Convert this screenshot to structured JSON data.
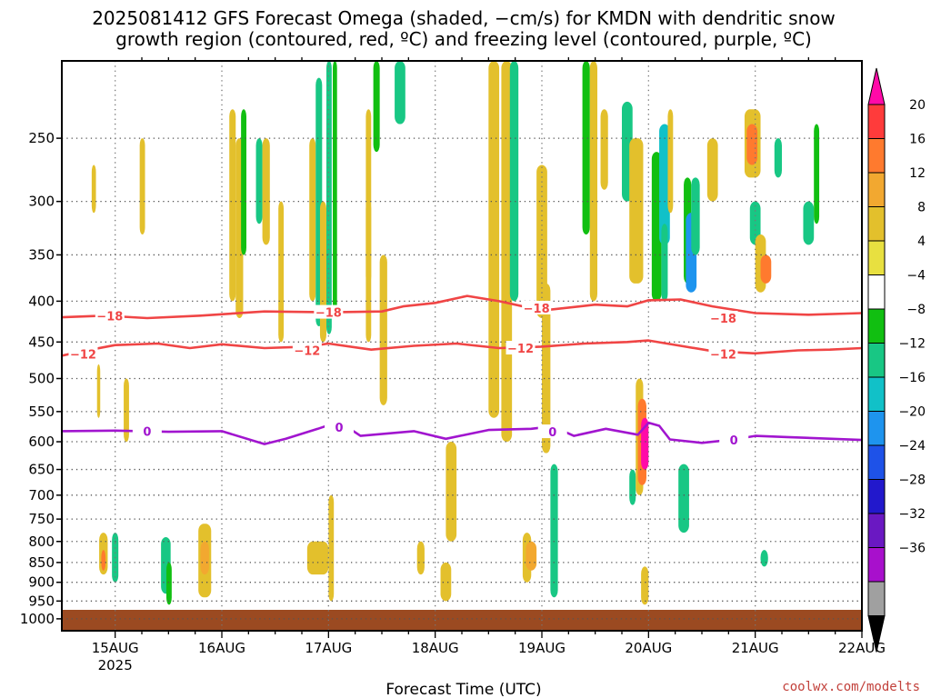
{
  "chart_data": {
    "type": "heatmap",
    "title_line1": "2025081412 GFS Forecast Omega (shaded, −cm/s) for KMDN with dendritic snow",
    "title_line2": "growth region (contoured, red, ºC) and freezing level (contoured, purple, ºC)",
    "xlabel": "Forecast Time (UTC)",
    "credit": "coolwx.com/modelts",
    "x_range_days": [
      "14AUG 12Z",
      "22AUG 00Z"
    ],
    "x_ticks": [
      {
        "label": "15AUG",
        "sub": "2025",
        "day": 15
      },
      {
        "label": "16AUG",
        "sub": "",
        "day": 16
      },
      {
        "label": "17AUG",
        "sub": "",
        "day": 17
      },
      {
        "label": "18AUG",
        "sub": "",
        "day": 18
      },
      {
        "label": "19AUG",
        "sub": "",
        "day": 19
      },
      {
        "label": "20AUG",
        "sub": "",
        "day": 20
      },
      {
        "label": "21AUG",
        "sub": "",
        "day": 21
      },
      {
        "label": "22AUG",
        "sub": "",
        "day": 22
      }
    ],
    "y_axis": {
      "units": "hPa",
      "range": [
        200,
        1035
      ],
      "scale": "log",
      "ticks": [
        "250",
        "300",
        "350",
        "400",
        "450",
        "500",
        "550",
        "600",
        "650",
        "700",
        "750",
        "800",
        "850",
        "900",
        "950",
        "1000"
      ]
    },
    "colorbar": {
      "labels": [
        "20",
        "16",
        "12",
        "8",
        "4",
        "−4",
        "−8",
        "−12",
        "−16",
        "−20",
        "−24",
        "−28",
        "−32",
        "−36"
      ],
      "colors": [
        "#ff0aa8",
        "#ff3b3b",
        "#ff7a2e",
        "#f2a830",
        "#e3c02c",
        "#e8e040",
        "#ffffff",
        "#11bf11",
        "#18c784",
        "#11c1c8",
        "#1e94ee",
        "#1e52e8",
        "#2218cc",
        "#6a18c2",
        "#a810cc",
        "#a0a0a0",
        "#000000"
      ]
    },
    "contours": [
      {
        "label": "−18",
        "color": "#f04545",
        "kind": "dendritic-snow",
        "points": [
          [
            14.5,
            419
          ],
          [
            14.9,
            417
          ],
          [
            15.3,
            420
          ],
          [
            15.8,
            417
          ],
          [
            16.4,
            412
          ],
          [
            17.0,
            413
          ],
          [
            17.5,
            412
          ],
          [
            17.7,
            406
          ],
          [
            18.0,
            402
          ],
          [
            18.3,
            394
          ],
          [
            18.6,
            400
          ],
          [
            19.0,
            411
          ],
          [
            19.5,
            404
          ],
          [
            19.8,
            406
          ],
          [
            20.0,
            399
          ],
          [
            20.3,
            398
          ],
          [
            20.6,
            406
          ],
          [
            21.0,
            414
          ],
          [
            21.5,
            416
          ],
          [
            22.0,
            414
          ]
        ],
        "label_at": [
          [
            14.95,
            417
          ],
          [
            17.0,
            413
          ],
          [
            18.95,
            408
          ],
          [
            20.7,
            420
          ]
        ]
      },
      {
        "label": "−12",
        "color": "#f04545",
        "kind": "dendritic-snow",
        "points": [
          [
            14.5,
            468
          ],
          [
            14.7,
            462
          ],
          [
            15.0,
            454
          ],
          [
            15.4,
            452
          ],
          [
            15.7,
            458
          ],
          [
            16.0,
            453
          ],
          [
            16.4,
            458
          ],
          [
            16.8,
            456
          ],
          [
            17.0,
            452
          ],
          [
            17.4,
            460
          ],
          [
            17.8,
            455
          ],
          [
            18.2,
            452
          ],
          [
            18.6,
            458
          ],
          [
            19.0,
            456
          ],
          [
            19.4,
            452
          ],
          [
            19.8,
            450
          ],
          [
            20.0,
            448
          ],
          [
            20.3,
            455
          ],
          [
            20.6,
            462
          ],
          [
            21.0,
            465
          ],
          [
            21.4,
            461
          ],
          [
            21.7,
            460
          ],
          [
            22.0,
            458
          ]
        ],
        "label_at": [
          [
            14.7,
            466
          ],
          [
            16.8,
            461
          ],
          [
            18.8,
            458
          ],
          [
            20.7,
            466
          ]
        ]
      },
      {
        "label": "0",
        "color": "#a115cf",
        "kind": "freezing-level",
        "points": [
          [
            14.5,
            582
          ],
          [
            15.0,
            581
          ],
          [
            15.5,
            583
          ],
          [
            16.0,
            582
          ],
          [
            16.4,
            604
          ],
          [
            16.6,
            595
          ],
          [
            16.9,
            578
          ],
          [
            17.1,
            566
          ],
          [
            17.3,
            590
          ],
          [
            17.8,
            582
          ],
          [
            18.1,
            595
          ],
          [
            18.5,
            580
          ],
          [
            18.9,
            578
          ],
          [
            19.1,
            574
          ],
          [
            19.3,
            590
          ],
          [
            19.6,
            578
          ],
          [
            19.9,
            588
          ],
          [
            20.0,
            568
          ],
          [
            20.1,
            573
          ],
          [
            20.2,
            596
          ],
          [
            20.5,
            602
          ],
          [
            20.8,
            596
          ],
          [
            21.0,
            590
          ],
          [
            21.3,
            592
          ],
          [
            22.0,
            597
          ]
        ],
        "label_at": [
          [
            15.3,
            582
          ],
          [
            17.1,
            575
          ],
          [
            19.1,
            583
          ],
          [
            20.8,
            597
          ]
        ]
      }
    ],
    "omega_cells": [
      [
        14.78,
        14.82,
        270,
        310,
        5
      ],
      [
        14.83,
        14.86,
        480,
        560,
        5
      ],
      [
        14.85,
        14.93,
        780,
        880,
        5
      ],
      [
        14.87,
        14.91,
        820,
        870,
        12
      ],
      [
        14.97,
        15.03,
        780,
        900,
        -8
      ],
      [
        15.08,
        15.13,
        500,
        600,
        5
      ],
      [
        15.23,
        15.28,
        250,
        330,
        5
      ],
      [
        15.43,
        15.52,
        790,
        930,
        -8
      ],
      [
        15.48,
        15.53,
        850,
        960,
        -6
      ],
      [
        15.78,
        15.9,
        760,
        940,
        5
      ],
      [
        15.8,
        15.88,
        800,
        880,
        10
      ],
      [
        16.07,
        16.13,
        230,
        400,
        5
      ],
      [
        16.13,
        16.2,
        250,
        420,
        5
      ],
      [
        16.18,
        16.23,
        230,
        350,
        -6
      ],
      [
        16.32,
        16.38,
        250,
        320,
        -8
      ],
      [
        16.38,
        16.45,
        250,
        340,
        5
      ],
      [
        16.53,
        16.58,
        300,
        450,
        5
      ],
      [
        16.82,
        16.88,
        250,
        400,
        5
      ],
      [
        16.88,
        16.94,
        210,
        430,
        -10
      ],
      [
        16.92,
        16.98,
        300,
        450,
        5
      ],
      [
        16.98,
        17.03,
        200,
        440,
        -8
      ],
      [
        17.04,
        17.08,
        200,
        420,
        -6
      ],
      [
        16.8,
        17.0,
        800,
        880,
        5
      ],
      [
        17.0,
        17.05,
        700,
        950,
        5
      ],
      [
        17.35,
        17.4,
        230,
        380,
        5
      ],
      [
        17.35,
        17.4,
        300,
        450,
        5
      ],
      [
        17.42,
        17.48,
        200,
        260,
        -6
      ],
      [
        17.48,
        17.55,
        350,
        540,
        5
      ],
      [
        17.62,
        17.72,
        200,
        240,
        -8
      ],
      [
        17.83,
        17.9,
        800,
        880,
        5
      ],
      [
        18.1,
        18.2,
        600,
        800,
        5
      ],
      [
        18.05,
        18.15,
        850,
        950,
        5
      ],
      [
        18.5,
        18.6,
        200,
        560,
        5
      ],
      [
        18.62,
        18.72,
        200,
        600,
        5
      ],
      [
        18.7,
        18.78,
        200,
        400,
        -8
      ],
      [
        18.82,
        18.9,
        780,
        900,
        5
      ],
      [
        18.85,
        18.95,
        800,
        870,
        10
      ],
      [
        18.95,
        19.05,
        270,
        420,
        5
      ],
      [
        19.0,
        19.08,
        380,
        620,
        5
      ],
      [
        19.08,
        19.15,
        640,
        940,
        -10
      ],
      [
        19.38,
        19.45,
        200,
        330,
        -6
      ],
      [
        19.45,
        19.52,
        200,
        400,
        5
      ],
      [
        19.55,
        19.62,
        230,
        290,
        5
      ],
      [
        19.75,
        19.85,
        225,
        300,
        -8
      ],
      [
        19.82,
        19.95,
        250,
        380,
        5
      ],
      [
        19.82,
        19.88,
        650,
        720,
        -10
      ],
      [
        19.88,
        19.95,
        500,
        700,
        5
      ],
      [
        19.9,
        19.98,
        530,
        680,
        14
      ],
      [
        19.93,
        20.0,
        560,
        650,
        20
      ],
      [
        19.93,
        20.0,
        860,
        960,
        5
      ],
      [
        20.03,
        20.12,
        260,
        400,
        -6
      ],
      [
        20.1,
        20.2,
        240,
        340,
        -12
      ],
      [
        20.12,
        20.18,
        320,
        400,
        -8
      ],
      [
        20.18,
        20.23,
        230,
        310,
        5
      ],
      [
        20.28,
        20.38,
        640,
        780,
        -8
      ],
      [
        20.33,
        20.4,
        280,
        380,
        -6
      ],
      [
        20.35,
        20.45,
        310,
        390,
        -18
      ],
      [
        20.4,
        20.48,
        280,
        350,
        -8
      ],
      [
        20.55,
        20.65,
        250,
        300,
        5
      ],
      [
        20.9,
        21.05,
        230,
        280,
        5
      ],
      [
        20.92,
        21.02,
        240,
        270,
        14
      ],
      [
        20.95,
        21.05,
        300,
        340,
        -8
      ],
      [
        21.0,
        21.1,
        330,
        390,
        5
      ],
      [
        21.05,
        21.15,
        350,
        380,
        14
      ],
      [
        21.18,
        21.25,
        250,
        280,
        -8
      ],
      [
        21.45,
        21.55,
        300,
        340,
        -8
      ],
      [
        21.55,
        21.6,
        240,
        320,
        -6
      ],
      [
        21.05,
        21.12,
        820,
        860,
        -8
      ]
    ]
  }
}
